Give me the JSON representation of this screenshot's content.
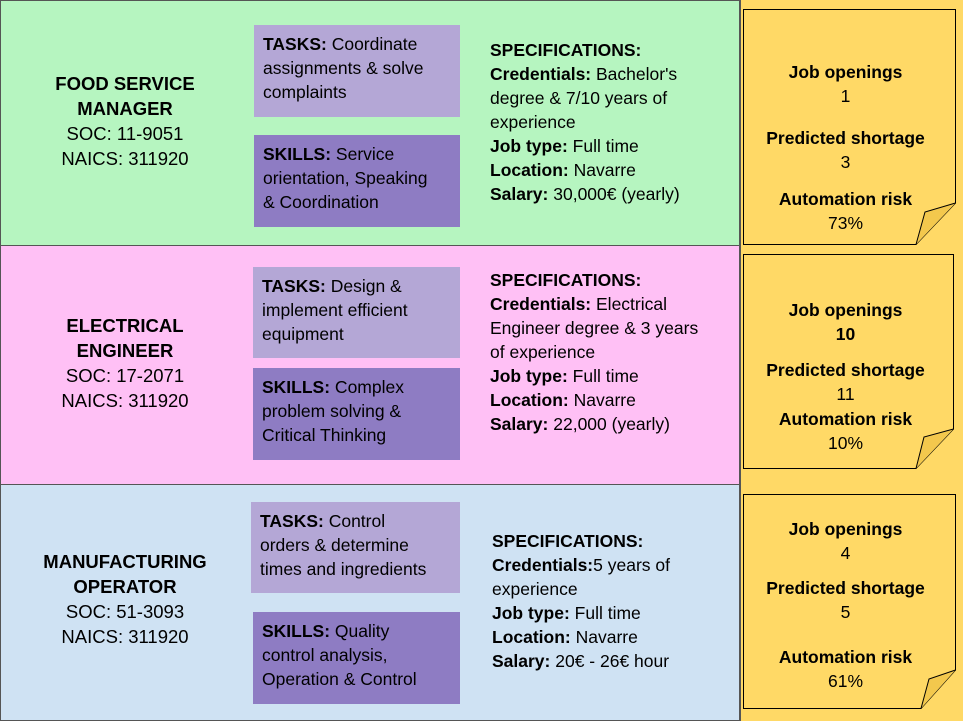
{
  "colors": {
    "row_backgrounds": [
      "#b6f5c0",
      "#ffc0f5",
      "#cfe2f3"
    ],
    "tasks_bg": "#b4a7d6",
    "skills_bg": "#8e7cc3",
    "note_bg": "#ffd966"
  },
  "jobs": [
    {
      "name_lines": [
        "FOOD SERVICE",
        "MANAGER"
      ],
      "soc": "SOC: 11-9051",
      "naics": "NAICS: 311920",
      "tasks_label": "TASKS:",
      "tasks_lines": [
        " Coordinate",
        "assignments & solve",
        "complaints"
      ],
      "skills_label": "SKILLS:",
      "skills_lines": [
        " Service",
        "orientation, Speaking",
        "& Coordination"
      ],
      "spec_header": "SPECIFICATIONS:",
      "credentials_label": "Credentials:",
      "credentials_lines": [
        " Bachelor's",
        "degree & 7/10 years of",
        "experience"
      ],
      "jobtype_label": "Job type:",
      "jobtype": " Full time",
      "location_label": "Location:",
      "location": " Navarre",
      "salary_label": "Salary:",
      "salary": " 30,000€ (yearly)",
      "openings_label": "Job openings",
      "openings": "1",
      "shortage_label": "Predicted shortage",
      "shortage": "3",
      "risk_label": "Automation risk",
      "risk": "73%"
    },
    {
      "name_lines": [
        "ELECTRICAL",
        "ENGINEER"
      ],
      "soc": "SOC: 17-2071",
      "naics": "NAICS: 311920",
      "tasks_label": "TASKS:",
      "tasks_lines": [
        " Design &",
        "implement efficient",
        "equipment"
      ],
      "skills_label": "SKILLS:",
      "skills_lines": [
        " Complex",
        "problem solving &",
        "Critical Thinking"
      ],
      "spec_header": "SPECIFICATIONS:",
      "credentials_label": "Credentials:",
      "credentials_lines": [
        " Electrical",
        "Engineer degree & 3 years",
        "of experience"
      ],
      "jobtype_label": "Job type:",
      "jobtype": " Full time",
      "location_label": "Location:",
      "location": " Navarre",
      "salary_label": "Salary:",
      "salary": " 22,000 (yearly)",
      "openings_label": "Job openings",
      "openings": "10",
      "shortage_label": "Predicted shortage",
      "shortage": "11",
      "risk_label": "Automation risk",
      "risk": "10%"
    },
    {
      "name_lines": [
        "MANUFACTURING",
        "OPERATOR"
      ],
      "soc": "SOC: 51-3093",
      "naics": "NAICS: 311920",
      "tasks_label": "TASKS:",
      "tasks_lines": [
        " Control",
        "orders & determine",
        "times and ingredients"
      ],
      "skills_label": "SKILLS:",
      "skills_lines": [
        " Quality",
        "control analysis,",
        "Operation & Control"
      ],
      "spec_header": "SPECIFICATIONS:",
      "credentials_label": "Credentials:",
      "credentials_lines": [
        "5 years of",
        "experience"
      ],
      "jobtype_label": "Job type:",
      "jobtype": " Full time",
      "location_label": "Location:",
      "location": " Navarre",
      "salary_label": "Salary:",
      "salary": " 20€ - 26€ hour",
      "openings_label": "Job openings",
      "openings": "4",
      "shortage_label": "Predicted shortage",
      "shortage": "5",
      "risk_label": "Automation risk",
      "risk": "61%"
    }
  ]
}
